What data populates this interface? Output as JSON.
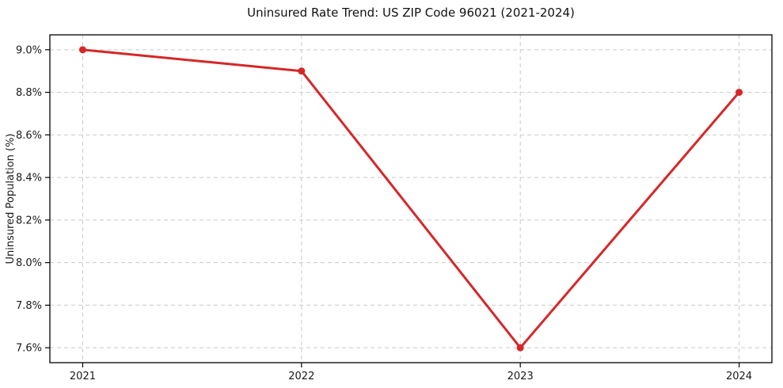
{
  "chart": {
    "title": "Uninsured Rate Trend: US ZIP Code 96021 (2021-2024)"
  },
  "chart_data": {
    "type": "line",
    "title": "Uninsured Rate Trend: US ZIP Code 96021 (2021-2024)",
    "xlabel": "",
    "ylabel": "Uninsured Population (%)",
    "x": [
      2021,
      2022,
      2023,
      2024
    ],
    "x_tick_labels": [
      "2021",
      "2022",
      "2023",
      "2024"
    ],
    "series": [
      {
        "name": "Uninsured Population (%)",
        "values": [
          9.0,
          8.9,
          7.6,
          8.8
        ]
      }
    ],
    "y_ticks": [
      7.6,
      7.8,
      8.0,
      8.2,
      8.4,
      8.6,
      8.8,
      9.0
    ],
    "y_tick_labels": [
      "7.6%",
      "7.8%",
      "8.0%",
      "8.2%",
      "8.4%",
      "8.6%",
      "8.8%",
      "9.0%"
    ],
    "ylim": [
      7.53,
      9.07
    ],
    "xlim": [
      2020.85,
      2024.15
    ],
    "grid": true,
    "legend": "none",
    "line_color": "#d62728",
    "marker": "circle",
    "marker_radius": 4.5,
    "line_width": 3,
    "grid_color": "#c9c9c9",
    "spine_color": "#000000",
    "text_color": "#1a1a1a"
  },
  "layout_note": "single line chart, white background"
}
